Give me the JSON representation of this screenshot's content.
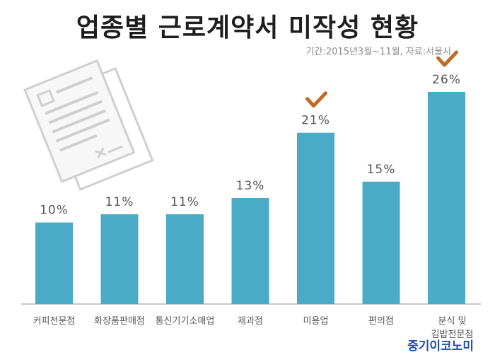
{
  "title": "업종별 근로계약서 미작성 현황",
  "subtitle": "기간:2015년3월~11월, 자료:서울시",
  "brand": "중기이코노미",
  "chart_data": {
    "type": "bar",
    "categories": [
      "커피전문점",
      "화장품판매점",
      "통신기기소매업",
      "제과점",
      "미용업",
      "편의점",
      "분식 및 김밥전문점"
    ],
    "category_lines": [
      [
        "커피전문점"
      ],
      [
        "화장품판매점"
      ],
      [
        "통신기기소매업"
      ],
      [
        "제과점"
      ],
      [
        "미용업"
      ],
      [
        "편의점"
      ],
      [
        "분식 및",
        "김밥전문점"
      ]
    ],
    "values": [
      10,
      11,
      11,
      13,
      21,
      15,
      26
    ],
    "value_labels": [
      "10%",
      "11%",
      "11%",
      "13%",
      "21%",
      "15%",
      "26%"
    ],
    "highlighted": [
      "미용업",
      "분식 및 김밥전문점"
    ],
    "ylim": [
      0,
      30
    ],
    "grid": false,
    "colors": {
      "bar": "#4aabc6",
      "check": "#c06a26",
      "baseline": "#b5b5b5",
      "paper": "#d0d0d0"
    },
    "icons": [
      "document-icon",
      "check-icon"
    ]
  }
}
